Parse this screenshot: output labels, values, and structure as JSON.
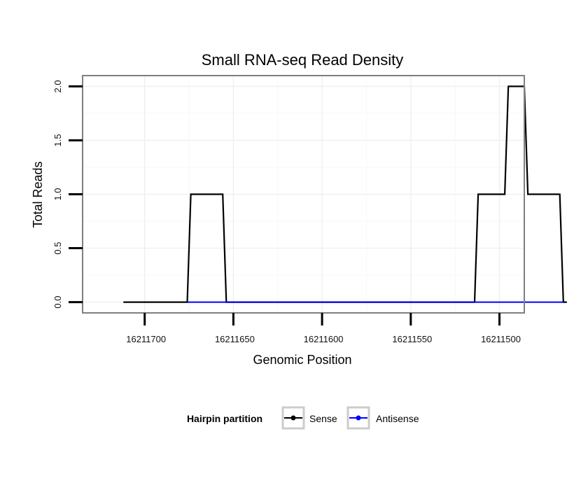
{
  "chart_data": {
    "type": "line",
    "title": "Small RNA-seq Read Density",
    "xlabel": "Genomic Position",
    "ylabel": "Total Reads",
    "xlim": [
      16211735,
      16211486
    ],
    "ylim": [
      -0.1,
      2.1
    ],
    "x_reversed": true,
    "x_ticks": [
      16211700,
      16211650,
      16211600,
      16211550,
      16211500
    ],
    "x_tick_labels": [
      "16211700",
      "16211650",
      "16211600",
      "16211550",
      "16211500"
    ],
    "y_ticks": [
      0.0,
      0.5,
      1.0,
      1.5,
      2.0
    ],
    "y_tick_labels": [
      "0.0",
      "0.5",
      "1.0",
      "1.5",
      "2.0"
    ],
    "grid": true,
    "legend": {
      "title": "Hairpin partition",
      "position": "bottom",
      "entries": [
        "Sense",
        "Antisense"
      ]
    },
    "series": [
      {
        "name": "Sense",
        "color": "#000000",
        "x": [
          16211712,
          16211676,
          16211674,
          16211656,
          16211654,
          16211514,
          16211512,
          16211497,
          16211495,
          16211486,
          16211484,
          16211476,
          16211474,
          16211466,
          16211464,
          16211462
        ],
        "values": [
          0,
          0,
          1,
          1,
          0,
          0,
          1,
          1,
          2,
          2,
          1,
          1,
          1,
          1,
          0,
          0
        ]
      },
      {
        "name": "Antisense",
        "color": "#0000ff",
        "x": [
          16211676,
          16211656,
          16211514,
          16211464
        ],
        "values": [
          0,
          0,
          0,
          0
        ]
      }
    ]
  }
}
